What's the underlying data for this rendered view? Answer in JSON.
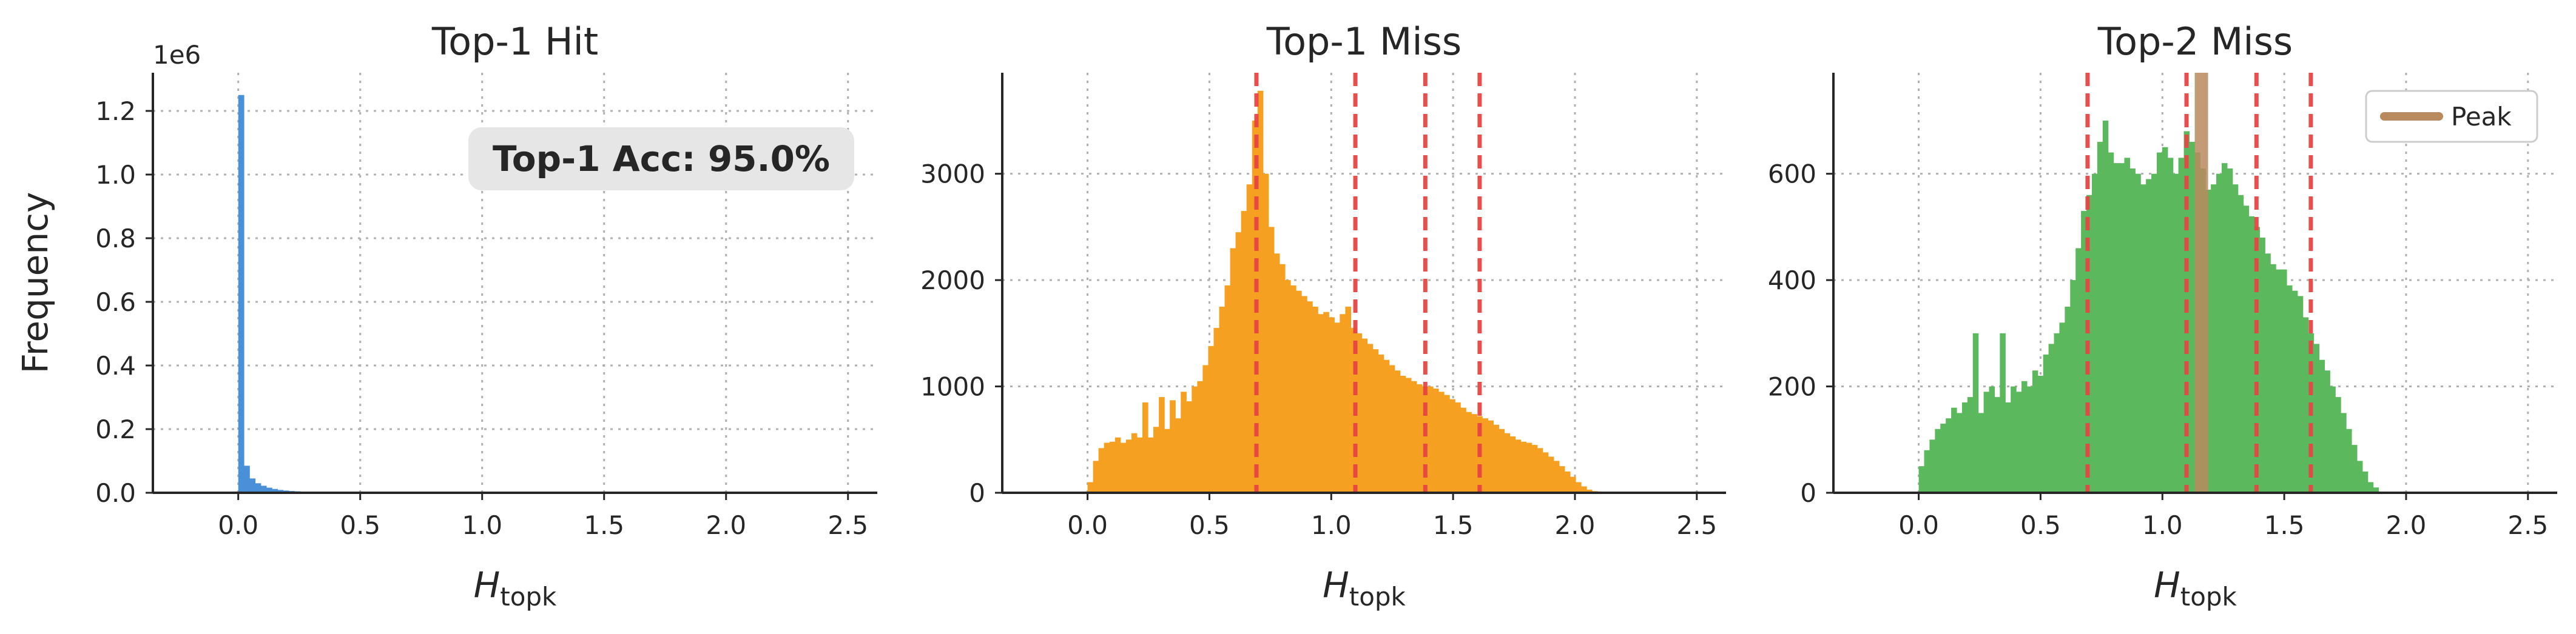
{
  "chart_data": [
    {
      "type": "histogram",
      "title": "Top-1 Hit",
      "xlabel_main": "H",
      "xlabel_sub": "topk",
      "ylabel": "Frequency",
      "offset_label": "1e6",
      "xlim": [
        -0.35,
        2.62
      ],
      "ylim": [
        0,
        1320000
      ],
      "xticks": [
        0.0,
        0.5,
        1.0,
        1.5,
        2.0,
        2.5
      ],
      "xtick_labels": [
        "0.0",
        "0.5",
        "1.0",
        "1.5",
        "2.0",
        "2.5"
      ],
      "yticks": [
        0,
        200000,
        400000,
        600000,
        800000,
        1000000,
        1200000
      ],
      "ytick_labels": [
        "0.0",
        "0.2",
        "0.4",
        "0.6",
        "0.8",
        "1.0",
        "1.2"
      ],
      "bin_start": 0.0,
      "bin_width": 0.023,
      "values": [
        1250000,
        85000,
        45000,
        30000,
        22000,
        16000,
        12000,
        9000,
        7000,
        5500,
        4500,
        3500,
        2800,
        2200,
        1800,
        1500,
        1200,
        1000,
        800,
        600,
        500,
        400,
        300,
        200,
        150,
        100,
        80,
        60,
        40,
        20
      ],
      "color": "#4a90d9",
      "annotation": "Top-1 Acc: 95.0%",
      "grid": true
    },
    {
      "type": "histogram",
      "title": "Top-1 Miss",
      "xlabel_main": "H",
      "xlabel_sub": "topk",
      "xlim": [
        -0.35,
        2.62
      ],
      "ylim": [
        0,
        3950
      ],
      "xticks": [
        0.0,
        0.5,
        1.0,
        1.5,
        2.0,
        2.5
      ],
      "xtick_labels": [
        "0.0",
        "0.5",
        "1.0",
        "1.5",
        "2.0",
        "2.5"
      ],
      "yticks": [
        0,
        1000,
        2000,
        3000
      ],
      "ytick_labels": [
        "0",
        "1000",
        "2000",
        "3000"
      ],
      "bin_start": 0.0,
      "bin_width": 0.0225,
      "values": [
        100,
        300,
        420,
        470,
        480,
        520,
        470,
        500,
        560,
        520,
        850,
        520,
        620,
        900,
        600,
        870,
        700,
        950,
        860,
        1000,
        1050,
        1200,
        1380,
        1550,
        1750,
        1950,
        2300,
        2450,
        2650,
        2900,
        3500,
        3780,
        3000,
        2500,
        2250,
        2150,
        2000,
        1950,
        1900,
        1850,
        1800,
        1750,
        1680,
        1700,
        1650,
        1600,
        1680,
        1750,
        1550,
        1500,
        1450,
        1400,
        1350,
        1300,
        1250,
        1200,
        1150,
        1100,
        1080,
        1050,
        1020,
        1000,
        1000,
        980,
        950,
        920,
        880,
        850,
        800,
        760,
        740,
        720,
        700,
        680,
        640,
        600,
        560,
        530,
        500,
        480,
        470,
        450,
        420,
        380,
        340,
        300,
        250,
        200,
        150,
        100,
        60,
        30,
        15,
        10
      ],
      "color": "#f5a020",
      "vlines": [
        0.693,
        1.099,
        1.386,
        1.609
      ],
      "vline_color": "#e64545",
      "grid": true
    },
    {
      "type": "histogram",
      "title": "Top-2 Miss",
      "xlabel_main": "H",
      "xlabel_sub": "topk",
      "xlim": [
        -0.35,
        2.62
      ],
      "ylim": [
        0,
        790
      ],
      "xticks": [
        0.0,
        0.5,
        1.0,
        1.5,
        2.0,
        2.5
      ],
      "xtick_labels": [
        "0.0",
        "0.5",
        "1.0",
        "1.5",
        "2.0",
        "2.5"
      ],
      "yticks": [
        0,
        200,
        400,
        600
      ],
      "ytick_labels": [
        "0",
        "200",
        "400",
        "600"
      ],
      "bin_start": 0.0,
      "bin_width": 0.0222,
      "values": [
        50,
        80,
        100,
        120,
        130,
        140,
        160,
        150,
        170,
        180,
        300,
        150,
        190,
        200,
        180,
        300,
        170,
        200,
        190,
        210,
        200,
        230,
        220,
        260,
        280,
        300,
        320,
        350,
        400,
        460,
        530,
        560,
        600,
        660,
        700,
        640,
        620,
        620,
        630,
        610,
        600,
        580,
        590,
        600,
        640,
        650,
        630,
        600,
        630,
        680,
        660,
        640,
        610,
        570,
        580,
        600,
        620,
        610,
        580,
        560,
        540,
        520,
        500,
        480,
        450,
        430,
        420,
        420,
        390,
        380,
        370,
        330,
        300,
        280,
        250,
        230,
        200,
        180,
        150,
        120,
        90,
        60,
        40,
        20,
        10
      ],
      "color": "#5cb85c",
      "vlines": [
        0.693,
        1.099,
        1.386,
        1.609
      ],
      "vline_color": "#e64545",
      "peak_x": 1.16,
      "peak_color": "#b98a5e",
      "legend": [
        "Peak"
      ],
      "legend_position": "upper-right",
      "grid": true
    }
  ]
}
